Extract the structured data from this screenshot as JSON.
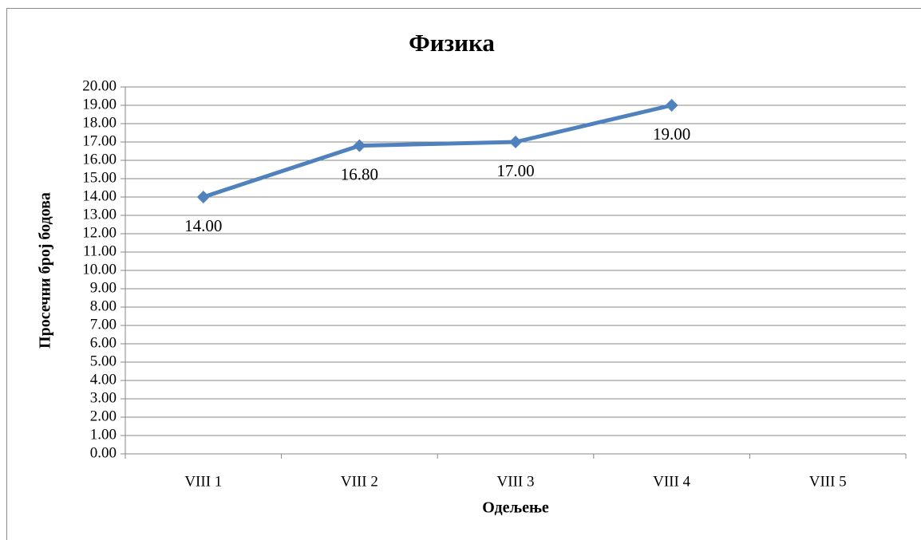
{
  "chart_data": {
    "type": "line",
    "title": "Физика",
    "x_label": "Одељење",
    "y_label": "Просечни број бодова",
    "categories": [
      "VIII 1",
      "VIII 2",
      "VIII 3",
      "VIII 4",
      "VIII 5"
    ],
    "series": [
      {
        "name": "Физика",
        "color": "#4f81bd",
        "values": [
          14,
          16.8,
          17,
          19,
          null
        ],
        "value_labels": [
          "14.00",
          "16.80",
          "17.00",
          "19.00",
          null
        ]
      }
    ],
    "ylim": [
      0,
      20
    ],
    "yticks": [
      {
        "value": 0,
        "label": "0.00"
      },
      {
        "value": 1,
        "label": "1.00"
      },
      {
        "value": 2,
        "label": "2.00"
      },
      {
        "value": 3,
        "label": "3.00"
      },
      {
        "value": 4,
        "label": "4.00"
      },
      {
        "value": 5,
        "label": "5.00"
      },
      {
        "value": 6,
        "label": "6.00"
      },
      {
        "value": 7,
        "label": "7.00"
      },
      {
        "value": 8,
        "label": "8.00"
      },
      {
        "value": 9,
        "label": "9.00"
      },
      {
        "value": 10,
        "label": "10.00"
      },
      {
        "value": 11,
        "label": "11.00"
      },
      {
        "value": 12,
        "label": "12.00"
      },
      {
        "value": 13,
        "label": "13.00"
      },
      {
        "value": 14,
        "label": "14.00"
      },
      {
        "value": 15,
        "label": "15.00"
      },
      {
        "value": 16,
        "label": "16.00"
      },
      {
        "value": 17,
        "label": "17.00"
      },
      {
        "value": 18,
        "label": "18.00"
      },
      {
        "value": 19,
        "label": "19.00"
      },
      {
        "value": 20,
        "label": "20.00"
      }
    ],
    "grid": true
  }
}
